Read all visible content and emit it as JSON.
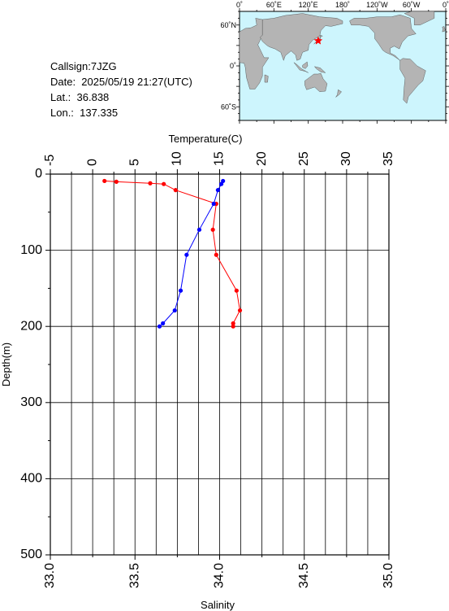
{
  "station": {
    "callsign": "Callsign:7JZG",
    "date": "Date:  2025/05/19 21:27(UTC)",
    "lat": "Lat.:  36.838",
    "lon": "Lon.:  137.335"
  },
  "map": {
    "top_labels": [
      "0˚",
      "60˚E",
      "120˚E",
      "180˚",
      "120˚W",
      "60˚W",
      "0˚"
    ],
    "left_labels": [
      "60˚N",
      "0˚",
      "60˚S"
    ],
    "ocean_color": "#cdf5fd",
    "land_color": "#b4b4b4",
    "marker_color": "#ff0000",
    "marker": {
      "lon": 137.335,
      "lat": 36.838
    }
  },
  "chart_data": {
    "type": "line",
    "y_label": "Depth(m)",
    "y_range": [
      0,
      500
    ],
    "y_reversed": true,
    "y_ticks": [
      "0",
      "100",
      "200",
      "300",
      "400",
      "500"
    ],
    "top_axis": {
      "label": "Temperature(C)",
      "range": [
        -5,
        35
      ],
      "ticks": [
        "-5",
        "0",
        "5",
        "10",
        "15",
        "20",
        "25",
        "30",
        "35"
      ]
    },
    "bottom_axis": {
      "label": "Salinity",
      "range": [
        33.0,
        35.0
      ],
      "ticks": [
        "33.0",
        "33.5",
        "34.0",
        "34.5",
        "35.0"
      ]
    },
    "grid": true,
    "series": [
      {
        "axis": "bottom",
        "color": "#ff0000",
        "points": [
          {
            "x": 33.32,
            "y": 9
          },
          {
            "x": 33.39,
            "y": 10
          },
          {
            "x": 33.59,
            "y": 12
          },
          {
            "x": 33.67,
            "y": 13
          },
          {
            "x": 33.74,
            "y": 21
          },
          {
            "x": 33.98,
            "y": 39
          },
          {
            "x": 33.96,
            "y": 73
          },
          {
            "x": 33.98,
            "y": 106
          },
          {
            "x": 34.1,
            "y": 153
          },
          {
            "x": 34.12,
            "y": 179
          },
          {
            "x": 34.08,
            "y": 196
          },
          {
            "x": 34.08,
            "y": 200
          }
        ]
      },
      {
        "axis": "top",
        "color": "#0000ff",
        "points": [
          {
            "x": 15.4,
            "y": 9
          },
          {
            "x": 15.2,
            "y": 13
          },
          {
            "x": 14.8,
            "y": 21
          },
          {
            "x": 14.3,
            "y": 39
          },
          {
            "x": 12.6,
            "y": 73
          },
          {
            "x": 11.1,
            "y": 106
          },
          {
            "x": 10.4,
            "y": 153
          },
          {
            "x": 9.7,
            "y": 179
          },
          {
            "x": 8.3,
            "y": 196
          },
          {
            "x": 7.9,
            "y": 200
          }
        ]
      }
    ]
  }
}
